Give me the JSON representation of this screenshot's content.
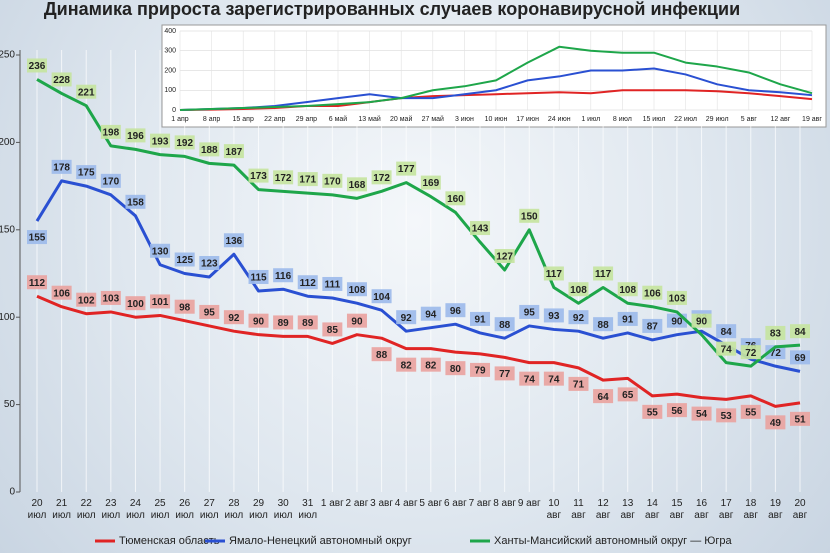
{
  "chart_data": [
    {
      "type": "line",
      "title": "Динамика прироста зарегистрированных случаев коронавирусной инфекции",
      "categories": [
        "20 июл",
        "21 июл",
        "22 июл",
        "23 июл",
        "24 июл",
        "25 июл",
        "26 июл",
        "27 июл",
        "28 июл",
        "29 июл",
        "30 июл",
        "31 июл",
        "1 авг",
        "2 авг",
        "3 авг",
        "4 авг",
        "5 авг",
        "6 авг",
        "7 авг",
        "8 авг",
        "9 авг",
        "10 авг",
        "11 авг",
        "12 авг",
        "13 авг",
        "14 авг",
        "15 авг",
        "16 авг",
        "17 авг",
        "18 авг",
        "19 авг",
        "20 авг"
      ],
      "series": [
        {
          "name": "Тюменская область",
          "color": "#e02424",
          "label_color": "#e9a3a0",
          "values": [
            112,
            106,
            102,
            103,
            100,
            101,
            98,
            95,
            92,
            90,
            89,
            89,
            85,
            90,
            88,
            82,
            82,
            80,
            79,
            77,
            74,
            74,
            71,
            64,
            65,
            55,
            56,
            54,
            53,
            55,
            49,
            51
          ]
        },
        {
          "name": "Ямало-Ненецкий автономный округ",
          "color": "#2a50d2",
          "label_color": "#9dbbea",
          "values": [
            155,
            178,
            175,
            170,
            158,
            130,
            125,
            123,
            136,
            115,
            116,
            112,
            111,
            108,
            104,
            92,
            94,
            96,
            91,
            88,
            95,
            93,
            92,
            88,
            91,
            87,
            90,
            92,
            84,
            76,
            72,
            69
          ]
        },
        {
          "name": "Ханты-Мансийский автономный округ — Югра",
          "color": "#1ea64a",
          "label_color": "#c6e4a0",
          "values": [
            236,
            228,
            221,
            198,
            196,
            193,
            192,
            188,
            187,
            173,
            172,
            171,
            170,
            168,
            172,
            177,
            169,
            160,
            143,
            127,
            150,
            117,
            108,
            117,
            108,
            106,
            103,
            90,
            74,
            72,
            83,
            84
          ]
        }
      ],
      "ylim": [
        0,
        250
      ],
      "yticks": [
        0,
        50,
        100,
        150,
        200,
        250
      ],
      "data_labels": true
    },
    {
      "type": "line",
      "categories": [
        "1 апр",
        "8 апр",
        "15 апр",
        "22 апр",
        "29 апр",
        "6 май",
        "13 май",
        "20 май",
        "27 май",
        "3 июн",
        "10 июн",
        "17 июн",
        "24 июн",
        "1 июл",
        "8 июл",
        "15 июл",
        "22 июл",
        "29 июл",
        "5 авг",
        "12 авг",
        "19 авг"
      ],
      "series": [
        {
          "color": "#e02424",
          "values": [
            0,
            2,
            5,
            10,
            20,
            20,
            40,
            60,
            70,
            75,
            80,
            85,
            90,
            85,
            100,
            100,
            100,
            95,
            85,
            70,
            55
          ]
        },
        {
          "color": "#2a50d2",
          "values": [
            0,
            5,
            10,
            20,
            40,
            60,
            80,
            60,
            60,
            80,
            100,
            150,
            170,
            200,
            200,
            210,
            180,
            130,
            100,
            90,
            75
          ]
        },
        {
          "color": "#1ea64a",
          "values": [
            0,
            5,
            10,
            15,
            20,
            30,
            40,
            60,
            100,
            120,
            150,
            240,
            320,
            300,
            290,
            290,
            240,
            220,
            190,
            130,
            85
          ]
        }
      ],
      "ylim": [
        0,
        400
      ],
      "yticks": [
        0,
        100,
        200,
        300,
        400
      ],
      "grid": true
    }
  ]
}
